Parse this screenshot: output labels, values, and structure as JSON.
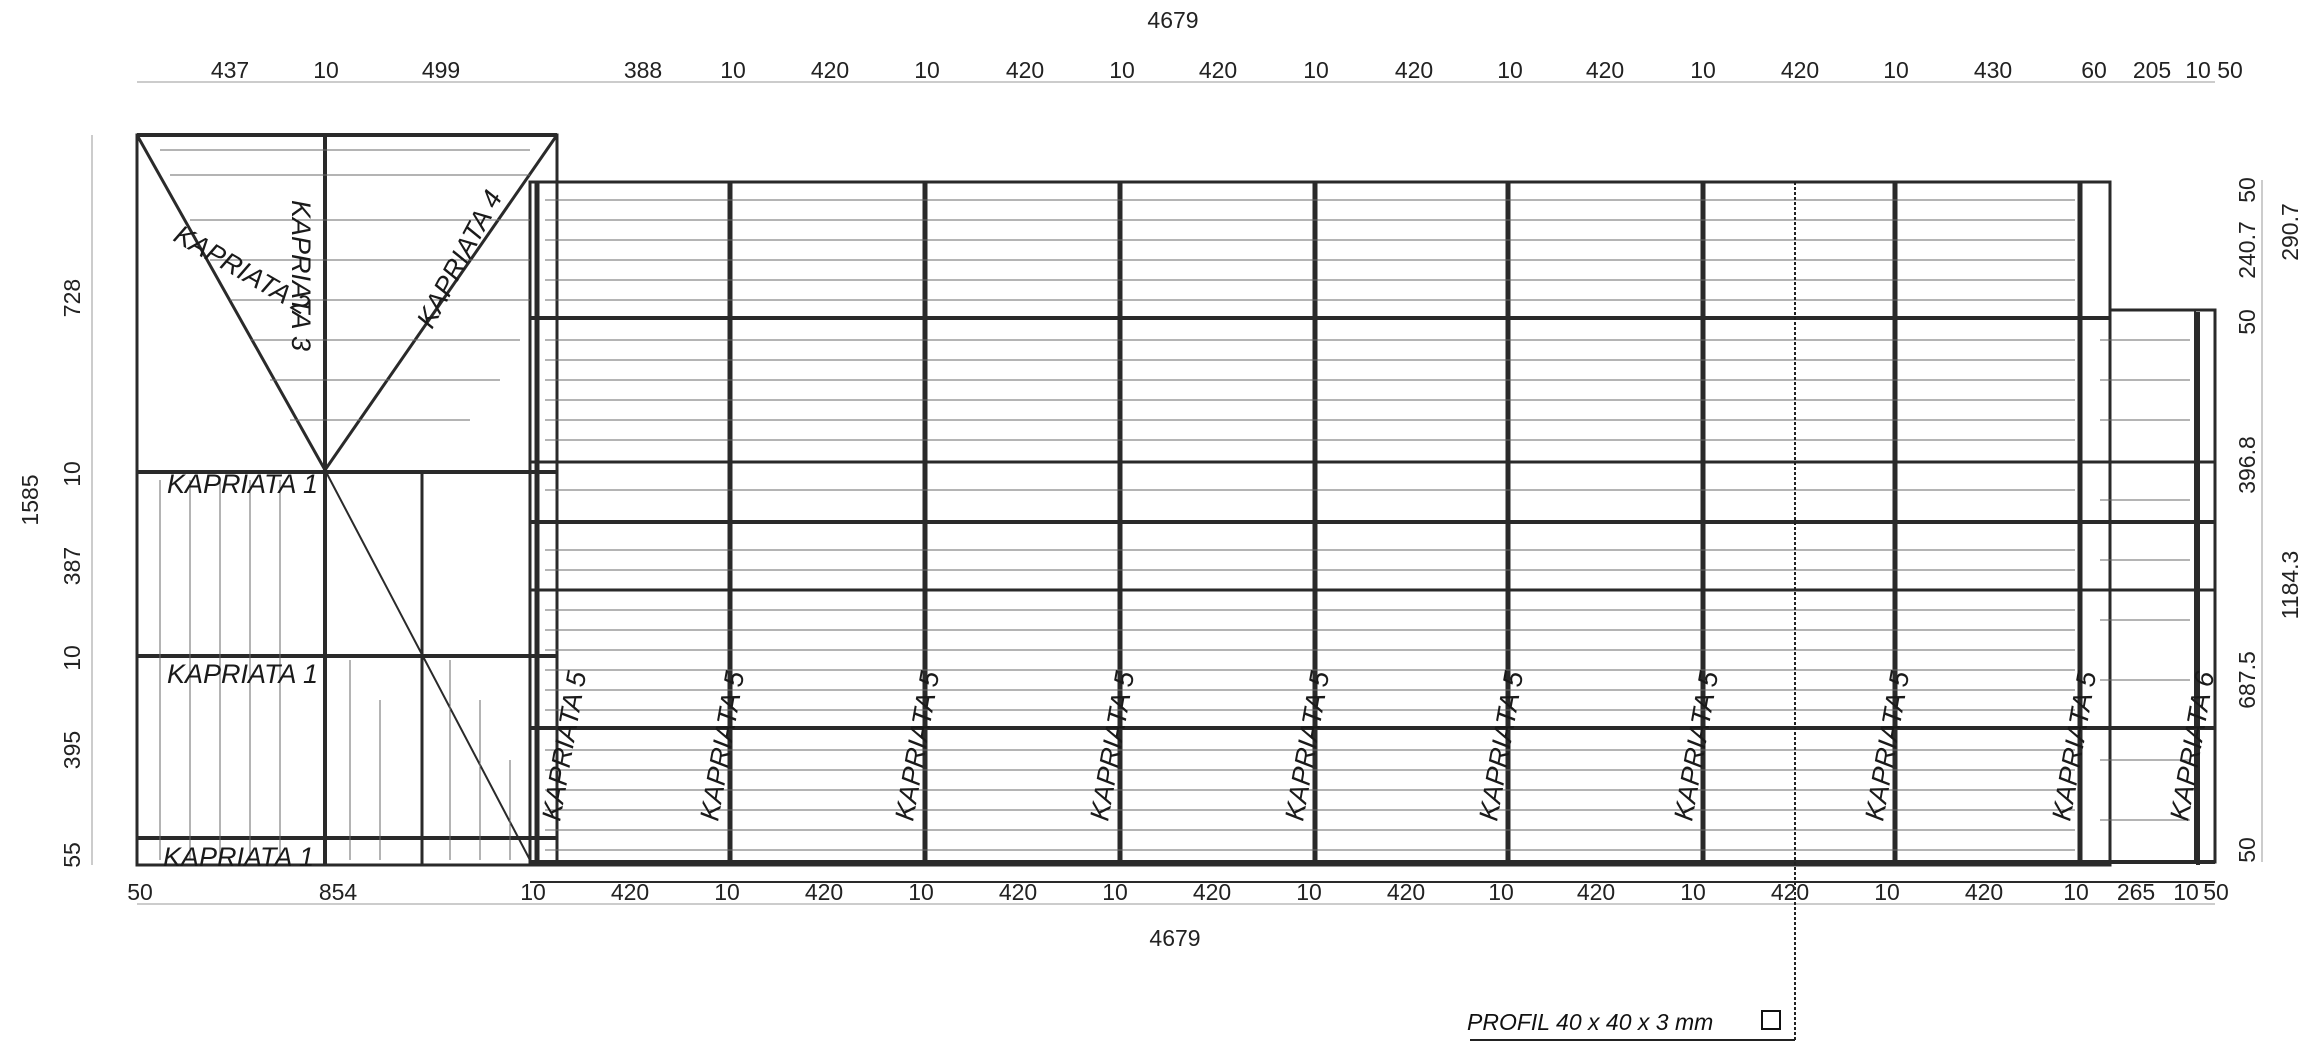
{
  "drawing": {
    "top_dims": {
      "total": "4679",
      "segments": [
        "437",
        "10",
        "499",
        "388",
        "10",
        "420",
        "10",
        "420",
        "10",
        "420",
        "10",
        "420",
        "10",
        "420",
        "10",
        "420",
        "10",
        "430",
        "60",
        "205",
        "10",
        "50"
      ]
    },
    "bottom_dims": {
      "total": "4679",
      "segments": [
        "50",
        "854",
        "10",
        "420",
        "10",
        "420",
        "10",
        "420",
        "10",
        "420",
        "10",
        "420",
        "10",
        "420",
        "10",
        "420",
        "10",
        "420",
        "10",
        "265",
        "10",
        "50"
      ]
    },
    "left_dims": {
      "total": "1585",
      "segments": [
        "728",
        "10",
        "387",
        "10",
        "395",
        "55"
      ]
    },
    "right_dims": {
      "inner": [
        "50",
        "240.7",
        "50",
        "396.8",
        "687.5",
        "50"
      ],
      "outer": [
        "290.7",
        "1184.3"
      ]
    },
    "truss_labels": {
      "k1": "KAPRIATA 1",
      "k2": "KAPRIATA 2",
      "k3": "KAPRIATA 3",
      "k4": "KAPRIATA 4",
      "k5": "KAPRIATA 5",
      "k6": "KAPRIATA 6"
    },
    "annotation": "PROFIL 40 x 40 x 3 mm"
  }
}
